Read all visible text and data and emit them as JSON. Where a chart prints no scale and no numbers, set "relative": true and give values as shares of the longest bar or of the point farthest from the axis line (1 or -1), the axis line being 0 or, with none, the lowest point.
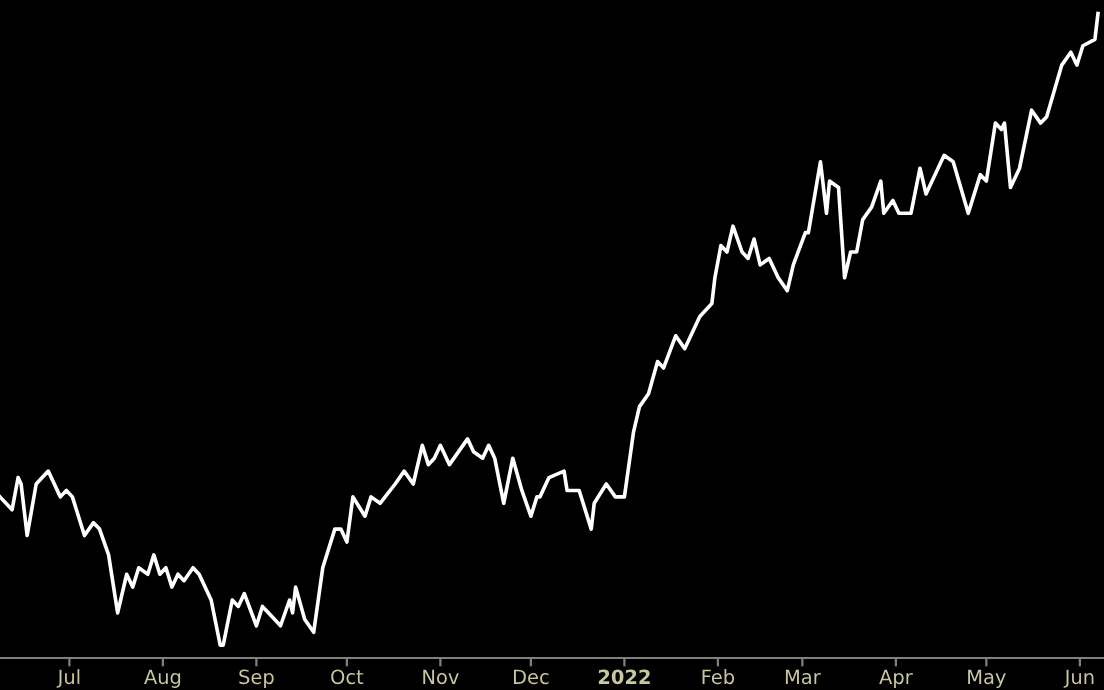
{
  "chart_data": {
    "type": "line",
    "relative": true,
    "grid": false,
    "marker": "none",
    "line_style": "solid",
    "xlim": [
      "2021-06-08",
      "2022-06-09"
    ],
    "xticks": [
      {
        "value": "2021-07-01",
        "label": "Jul"
      },
      {
        "value": "2021-08-01",
        "label": "Aug"
      },
      {
        "value": "2021-09-01",
        "label": "Sep"
      },
      {
        "value": "2021-10-01",
        "label": "Oct"
      },
      {
        "value": "2021-11-01",
        "label": "Nov"
      },
      {
        "value": "2021-12-01",
        "label": "Dec"
      },
      {
        "value": "2022-01-01",
        "label": "2022"
      },
      {
        "value": "2022-02-01",
        "label": "Feb"
      },
      {
        "value": "2022-03-01",
        "label": "Mar"
      },
      {
        "value": "2022-04-01",
        "label": "Apr"
      },
      {
        "value": "2022-05-01",
        "label": "May"
      },
      {
        "value": "2022-06-01",
        "label": "Jun"
      }
    ],
    "x": [
      "2021-06-08",
      "2021-06-12",
      "2021-06-14",
      "2021-06-15",
      "2021-06-17",
      "2021-06-20",
      "2021-06-24",
      "2021-06-28",
      "2021-06-30",
      "2021-07-02",
      "2021-07-06",
      "2021-07-09",
      "2021-07-11",
      "2021-07-14",
      "2021-07-17",
      "2021-07-20",
      "2021-07-22",
      "2021-07-24",
      "2021-07-27",
      "2021-07-29",
      "2021-07-31",
      "2021-08-02",
      "2021-08-04",
      "2021-08-06",
      "2021-08-08",
      "2021-08-11",
      "2021-08-13",
      "2021-08-17",
      "2021-08-20",
      "2021-08-21",
      "2021-08-24",
      "2021-08-26",
      "2021-08-28",
      "2021-09-01",
      "2021-09-03",
      "2021-09-07",
      "2021-09-09",
      "2021-09-12",
      "2021-09-13",
      "2021-09-14",
      "2021-09-17",
      "2021-09-20",
      "2021-09-23",
      "2021-09-27",
      "2021-09-29",
      "2021-10-01",
      "2021-10-03",
      "2021-10-07",
      "2021-10-09",
      "2021-10-12",
      "2021-10-17",
      "2021-10-20",
      "2021-10-23",
      "2021-10-26",
      "2021-10-28",
      "2021-10-30",
      "2021-11-01",
      "2021-11-04",
      "2021-11-10",
      "2021-11-12",
      "2021-11-15",
      "2021-11-17",
      "2021-11-19",
      "2021-11-22",
      "2021-11-25",
      "2021-11-28",
      "2021-12-01",
      "2021-12-03",
      "2021-12-04",
      "2021-12-07",
      "2021-12-12",
      "2021-12-13",
      "2021-12-17",
      "2021-12-21",
      "2021-12-22",
      "2021-12-26",
      "2021-12-29",
      "2022-01-01",
      "2022-01-04",
      "2022-01-06",
      "2022-01-09",
      "2022-01-12",
      "2022-01-14",
      "2022-01-18",
      "2022-01-21",
      "2022-01-26",
      "2022-01-30",
      "2022-01-31",
      "2022-02-02",
      "2022-02-04",
      "2022-02-06",
      "2022-02-09",
      "2022-02-11",
      "2022-02-13",
      "2022-02-15",
      "2022-02-18",
      "2022-02-21",
      "2022-02-24",
      "2022-02-26",
      "2022-03-02",
      "2022-03-03",
      "2022-03-07",
      "2022-03-09",
      "2022-03-10",
      "2022-03-13",
      "2022-03-15",
      "2022-03-17",
      "2022-03-19",
      "2022-03-21",
      "2022-03-24",
      "2022-03-27",
      "2022-03-28",
      "2022-03-31",
      "2022-04-02",
      "2022-04-06",
      "2022-04-09",
      "2022-04-11",
      "2022-04-17",
      "2022-04-20",
      "2022-04-25",
      "2022-04-29",
      "2022-05-01",
      "2022-05-04",
      "2022-05-06",
      "2022-05-07",
      "2022-05-09",
      "2022-05-12",
      "2022-05-16",
      "2022-05-19",
      "2022-05-21",
      "2022-05-26",
      "2022-05-29",
      "2022-05-31",
      "2022-06-02",
      "2022-06-06",
      "2022-06-07"
    ],
    "series": [
      {
        "color": "#ffffff",
        "values": [
          0.25,
          0.23,
          0.28,
          0.27,
          0.19,
          0.27,
          0.29,
          0.25,
          0.26,
          0.25,
          0.19,
          0.21,
          0.2,
          0.16,
          0.07,
          0.13,
          0.11,
          0.14,
          0.13,
          0.16,
          0.13,
          0.14,
          0.11,
          0.13,
          0.12,
          0.14,
          0.13,
          0.09,
          0.02,
          0.02,
          0.09,
          0.08,
          0.1,
          0.05,
          0.08,
          0.06,
          0.05,
          0.09,
          0.07,
          0.11,
          0.06,
          0.04,
          0.14,
          0.2,
          0.2,
          0.18,
          0.25,
          0.22,
          0.25,
          0.24,
          0.27,
          0.29,
          0.27,
          0.33,
          0.3,
          0.31,
          0.33,
          0.3,
          0.34,
          0.32,
          0.31,
          0.33,
          0.31,
          0.24,
          0.31,
          0.26,
          0.22,
          0.25,
          0.25,
          0.28,
          0.29,
          0.26,
          0.26,
          0.2,
          0.24,
          0.27,
          0.25,
          0.25,
          0.35,
          0.39,
          0.41,
          0.46,
          0.45,
          0.5,
          0.48,
          0.53,
          0.55,
          0.59,
          0.64,
          0.63,
          0.67,
          0.63,
          0.62,
          0.65,
          0.61,
          0.62,
          0.59,
          0.57,
          0.61,
          0.66,
          0.66,
          0.77,
          0.69,
          0.74,
          0.73,
          0.59,
          0.63,
          0.63,
          0.68,
          0.7,
          0.74,
          0.69,
          0.71,
          0.69,
          0.69,
          0.76,
          0.72,
          0.78,
          0.77,
          0.69,
          0.75,
          0.74,
          0.83,
          0.82,
          0.83,
          0.73,
          0.76,
          0.85,
          0.83,
          0.84,
          0.92,
          0.94,
          0.92,
          0.95,
          0.96,
          1
        ]
      }
    ]
  }
}
